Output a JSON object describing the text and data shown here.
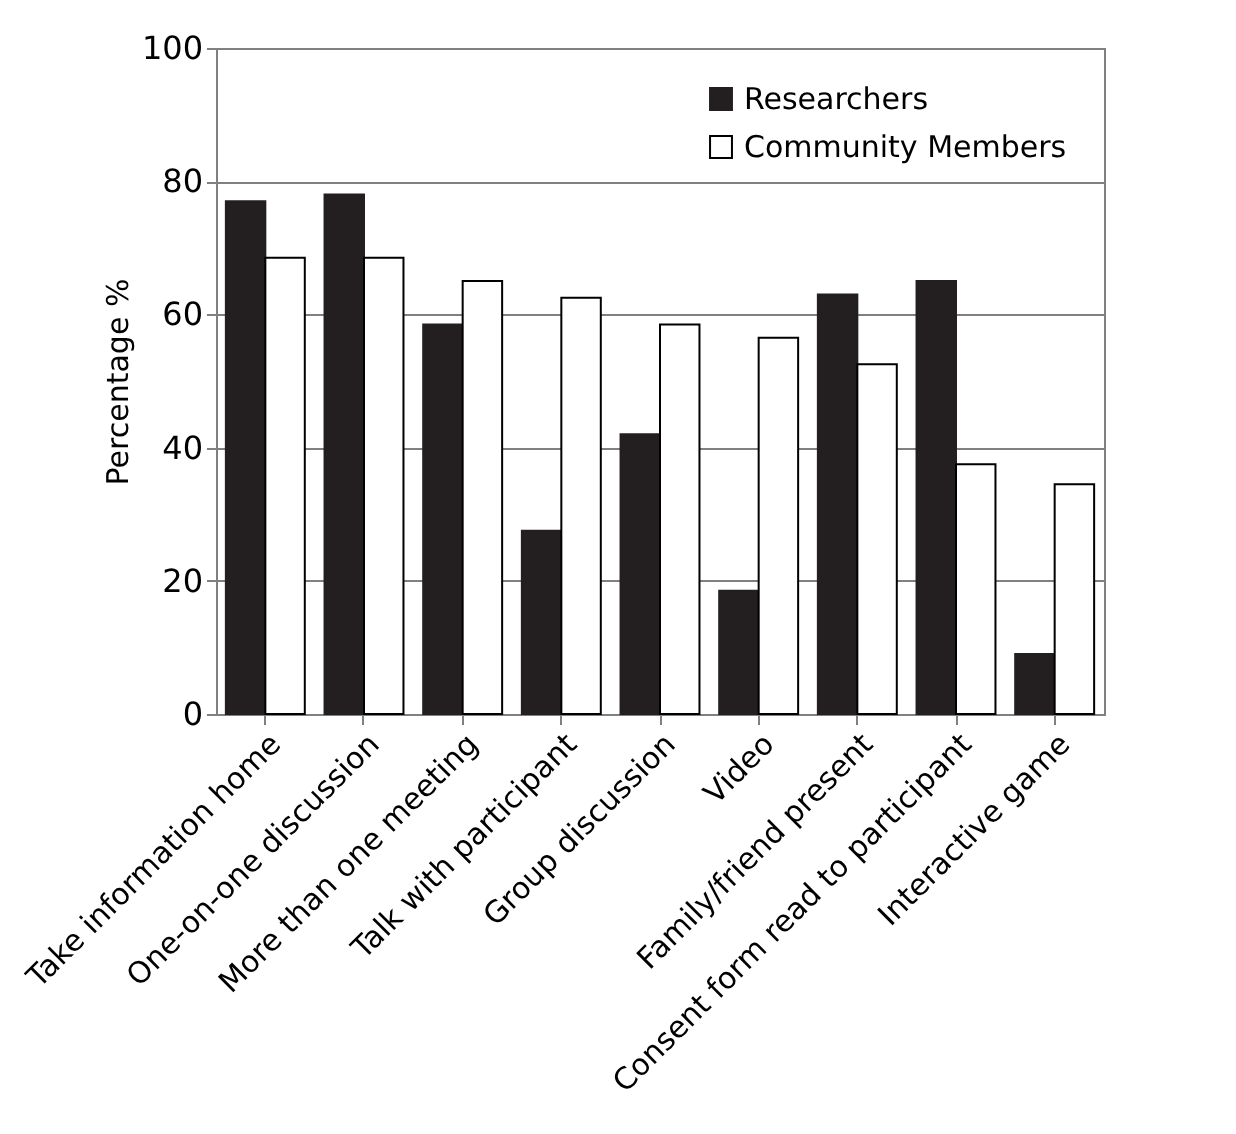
{
  "chart_data": {
    "type": "bar",
    "ylabel": "Percentage %",
    "categories": [
      "Take information home",
      "One-on-one discussion",
      "More than one meeting",
      "Talk with participant",
      "Group discussion",
      "Video",
      "Family/friend present",
      "Consent form read to participant",
      "Interactive game"
    ],
    "series": [
      {
        "name": "Researchers",
        "color": "#231f20",
        "values": [
          77,
          78,
          58.5,
          27.5,
          42,
          18.5,
          63,
          65,
          9
        ]
      },
      {
        "name": "Community Members",
        "color": "#ffffff",
        "values": [
          68.5,
          68.5,
          65,
          62.5,
          58.5,
          56.5,
          52.5,
          37.5,
          34.5
        ]
      }
    ],
    "ylim": [
      0,
      100
    ],
    "yticks": [
      0,
      20,
      40,
      60,
      80,
      100
    ],
    "grid": "y",
    "legend": "top right"
  }
}
